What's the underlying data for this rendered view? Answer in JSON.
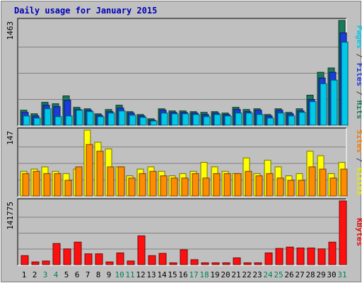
{
  "title": "Daily usage for January 2015",
  "chart_data": [
    {
      "type": "bar",
      "panel": "top",
      "ymax_label": "1463",
      "ylim": [
        0,
        1463
      ],
      "grid": true,
      "side_label": [
        {
          "text": "Pages",
          "color": "#00c8e8"
        },
        {
          "text": " / ",
          "color": "#404040"
        },
        {
          "text": "Files",
          "color": "#1a3cd8"
        },
        {
          "text": " / ",
          "color": "#404040"
        },
        {
          "text": "Hits",
          "color": "#1a7a5a"
        }
      ],
      "series": [
        {
          "name": "Hits",
          "color": "#1a7a5a",
          "values": [
            210,
            160,
            320,
            300,
            410,
            250,
            230,
            160,
            220,
            280,
            190,
            150,
            90,
            230,
            200,
            200,
            190,
            180,
            190,
            170,
            250,
            220,
            230,
            150,
            230,
            180,
            230,
            420,
            740,
            800,
            1463
          ]
        },
        {
          "name": "Files",
          "color": "#1a3cd8",
          "values": [
            180,
            130,
            280,
            260,
            350,
            220,
            210,
            140,
            190,
            240,
            170,
            130,
            70,
            210,
            180,
            180,
            170,
            150,
            170,
            150,
            220,
            190,
            210,
            130,
            210,
            160,
            200,
            360,
            660,
            740,
            1290
          ]
        },
        {
          "name": "Pages",
          "color": "#00c8e8",
          "values": [
            130,
            100,
            230,
            120,
            130,
            210,
            190,
            120,
            170,
            200,
            140,
            110,
            60,
            170,
            160,
            160,
            150,
            120,
            150,
            130,
            170,
            170,
            150,
            100,
            170,
            130,
            180,
            330,
            580,
            630,
            1160
          ]
        }
      ]
    },
    {
      "type": "bar",
      "panel": "middle",
      "ymax_label": "147",
      "ylim": [
        0,
        147
      ],
      "grid": true,
      "side_label": [
        {
          "text": "Sites",
          "color": "#f08000"
        },
        {
          "text": " / ",
          "color": "#404040"
        },
        {
          "text": "Visits",
          "color": "#e8e800"
        }
      ],
      "series": [
        {
          "name": "Visits",
          "color": "#ffff00",
          "values": [
            55,
            60,
            65,
            55,
            50,
            60,
            147,
            120,
            105,
            65,
            45,
            60,
            65,
            55,
            45,
            50,
            55,
            75,
            65,
            55,
            50,
            85,
            50,
            80,
            65,
            45,
            50,
            100,
            90,
            50,
            75
          ]
        },
        {
          "name": "Sites",
          "color": "#ff8c00",
          "values": [
            50,
            55,
            50,
            50,
            35,
            65,
            115,
            100,
            65,
            65,
            40,
            50,
            55,
            45,
            40,
            40,
            50,
            40,
            50,
            50,
            50,
            55,
            45,
            50,
            40,
            35,
            35,
            65,
            60,
            40,
            60
          ]
        }
      ]
    },
    {
      "type": "bar",
      "panel": "bottom",
      "ymax_label": "141775",
      "ylim": [
        0,
        141775
      ],
      "grid": true,
      "side_label": [
        {
          "text": "KBytes",
          "color": "#e01010"
        }
      ],
      "series": [
        {
          "name": "KBytes",
          "color": "#ff1010",
          "values": [
            20000,
            6000,
            8000,
            47000,
            35000,
            50000,
            24000,
            24000,
            6000,
            26000,
            8000,
            64000,
            20000,
            25000,
            4000,
            33000,
            11000,
            4000,
            4000,
            4000,
            15000,
            4000,
            4000,
            26000,
            36000,
            39000,
            37000,
            37000,
            35000,
            50000,
            141775
          ]
        }
      ]
    }
  ],
  "x_labels": [
    "1",
    "2",
    "3",
    "4",
    "5",
    "6",
    "7",
    "8",
    "9",
    "10",
    "11",
    "12",
    "13",
    "14",
    "15",
    "16",
    "17",
    "18",
    "19",
    "20",
    "21",
    "22",
    "23",
    "24",
    "25",
    "26",
    "27",
    "28",
    "29",
    "30",
    "31"
  ],
  "x_label_colors": {
    "weekend": "#00805a",
    "weekday": "#000000"
  },
  "weekend_days": [
    3,
    4,
    10,
    11,
    17,
    18,
    24,
    25,
    31
  ]
}
